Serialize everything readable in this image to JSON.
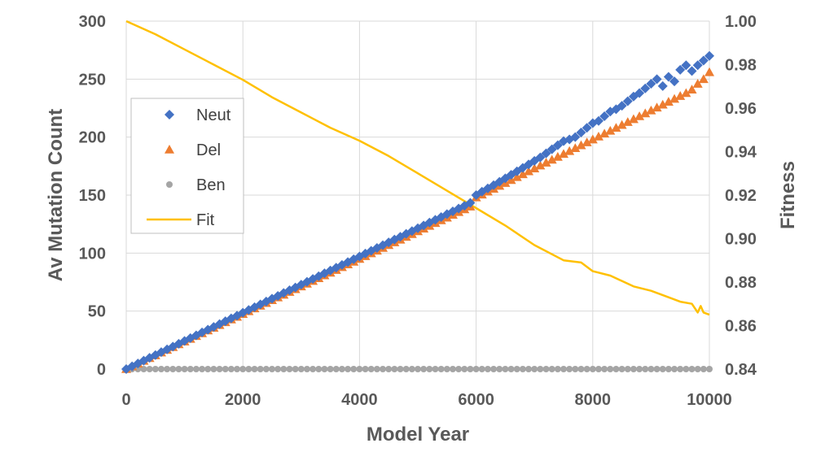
{
  "chart_data": {
    "type": "scatter",
    "xlabel": "Model Year",
    "ylabel_left": "Av Mutation Count",
    "ylabel_right": "Fitness",
    "x_range": [
      0,
      10000
    ],
    "y_left_range": [
      0,
      300
    ],
    "y_right_range": [
      0.84,
      1.0
    ],
    "x_ticks": [
      "0",
      "2000",
      "4000",
      "6000",
      "8000",
      "10000"
    ],
    "y_left_ticks": [
      "0",
      "50",
      "100",
      "150",
      "200",
      "250",
      "300"
    ],
    "y_right_ticks": [
      "0.84",
      "0.86",
      "0.88",
      "0.90",
      "0.92",
      "0.94",
      "0.96",
      "0.98",
      "1.00"
    ],
    "grid": "vertical and horizontal",
    "legend_position": "left",
    "x": [
      0,
      100,
      200,
      300,
      400,
      500,
      600,
      700,
      800,
      900,
      1000,
      1100,
      1200,
      1300,
      1400,
      1500,
      1600,
      1700,
      1800,
      1900,
      2000,
      2100,
      2200,
      2300,
      2400,
      2500,
      2600,
      2700,
      2800,
      2900,
      3000,
      3100,
      3200,
      3300,
      3400,
      3500,
      3600,
      3700,
      3800,
      3900,
      4000,
      4100,
      4200,
      4300,
      4400,
      4500,
      4600,
      4700,
      4800,
      4900,
      5000,
      5100,
      5200,
      5300,
      5400,
      5500,
      5600,
      5700,
      5800,
      5900,
      6000,
      6100,
      6200,
      6300,
      6400,
      6500,
      6600,
      6700,
      6800,
      6900,
      7000,
      7100,
      7200,
      7300,
      7400,
      7500,
      7600,
      7700,
      7800,
      7900,
      8000,
      8100,
      8200,
      8300,
      8400,
      8500,
      8600,
      8700,
      8800,
      8900,
      9000,
      9100,
      9200,
      9300,
      9400,
      9500,
      9600,
      9700,
      9800,
      9900,
      10000
    ],
    "series": [
      {
        "name": "Neut",
        "axis": "left",
        "marker": "diamond",
        "color": "#4472c4",
        "values": [
          0,
          2.4,
          4.8,
          7.3,
          9.7,
          12.1,
          14.6,
          17,
          19.4,
          21.8,
          24.3,
          26.7,
          29.1,
          31.6,
          34,
          36.4,
          38.8,
          41.3,
          43.7,
          46.1,
          48.6,
          51,
          53.4,
          55.8,
          58.3,
          60.7,
          63.1,
          65.6,
          68,
          70.4,
          72.8,
          75.3,
          77.7,
          80.1,
          82.6,
          85,
          87.4,
          89.8,
          92.3,
          94.7,
          97.1,
          99.6,
          102,
          104.4,
          106.8,
          109.3,
          111.7,
          114.1,
          116.6,
          119,
          121.4,
          123.8,
          126.3,
          128.7,
          131.1,
          133.6,
          136,
          138.4,
          140.8,
          143.3,
          150,
          153,
          155.8,
          158.6,
          161.5,
          164.5,
          167.5,
          170.5,
          173.5,
          176.5,
          179.5,
          182.5,
          186,
          189.5,
          193,
          196.5,
          198,
          200,
          204,
          208,
          212,
          214,
          218,
          222,
          224,
          227,
          231,
          235,
          238,
          242,
          246,
          250,
          244,
          252,
          248,
          258,
          262,
          257,
          262,
          266,
          270
        ]
      },
      {
        "name": "Del",
        "axis": "left",
        "marker": "triangle",
        "color": "#ed7d31",
        "values": [
          0,
          2.4,
          4.8,
          7.1,
          9.5,
          11.9,
          14.3,
          16.6,
          19,
          21.4,
          23.8,
          26.1,
          28.5,
          30.9,
          33.3,
          35.6,
          38,
          40.4,
          42.8,
          45.1,
          47.5,
          49.9,
          52.3,
          54.6,
          57,
          59.4,
          61.8,
          64.1,
          66.5,
          68.9,
          71.3,
          73.6,
          76,
          78.4,
          80.8,
          83.1,
          85.5,
          87.9,
          90.3,
          92.6,
          95,
          97.4,
          99.8,
          102.1,
          104.5,
          106.9,
          109.3,
          111.6,
          114,
          116.4,
          118.8,
          121.1,
          123.5,
          125.9,
          128.3,
          130.6,
          133,
          135.4,
          137.8,
          140.1,
          148,
          150.5,
          153,
          155.5,
          158,
          160.5,
          163,
          165.5,
          168,
          170.5,
          173,
          175.5,
          178,
          180.5,
          183,
          185.5,
          188,
          190.5,
          193,
          195.5,
          198,
          200.5,
          203,
          205.5,
          208,
          210.5,
          213,
          215.5,
          218,
          220.5,
          223,
          225.5,
          228,
          230.5,
          233,
          235.5,
          238,
          241,
          246,
          250,
          256
        ]
      },
      {
        "name": "Ben",
        "axis": "left",
        "marker": "circle",
        "color": "#a5a5a5",
        "values": [
          0,
          0,
          0,
          0,
          0,
          0,
          0,
          0,
          0,
          0,
          0,
          0,
          0,
          0,
          0,
          0,
          0,
          0,
          0,
          0,
          0,
          0,
          0,
          0,
          0,
          0,
          0,
          0,
          0,
          0,
          0,
          0,
          0,
          0,
          0,
          0,
          0,
          0,
          0,
          0,
          0,
          0,
          0,
          0,
          0,
          0,
          0,
          0,
          0,
          0,
          0,
          0,
          0,
          0,
          0,
          0,
          0,
          0,
          0,
          0,
          0,
          0,
          0,
          0,
          0,
          0,
          0,
          0,
          0,
          0,
          0,
          0,
          0,
          0,
          0,
          0,
          0,
          0,
          0,
          0,
          0,
          0,
          0,
          0,
          0,
          0,
          0,
          0,
          0,
          0,
          0,
          0,
          0,
          0,
          0,
          0,
          0,
          0,
          0,
          0,
          0
        ]
      },
      {
        "name": "Fit",
        "axis": "right",
        "marker": "line",
        "color": "#ffc000",
        "x": [
          0,
          500,
          1000,
          1500,
          2000,
          2500,
          3000,
          3500,
          4000,
          4500,
          5000,
          5500,
          6000,
          6500,
          7000,
          7500,
          7800,
          8000,
          8300,
          8700,
          9000,
          9300,
          9500,
          9700,
          9800,
          9850,
          9900,
          10000
        ],
        "values": [
          1.0,
          0.994,
          0.987,
          0.98,
          0.973,
          0.965,
          0.958,
          0.951,
          0.945,
          0.938,
          0.93,
          0.922,
          0.914,
          0.906,
          0.897,
          0.89,
          0.889,
          0.885,
          0.883,
          0.878,
          0.876,
          0.873,
          0.871,
          0.87,
          0.866,
          0.869,
          0.866,
          0.865
        ]
      }
    ]
  }
}
